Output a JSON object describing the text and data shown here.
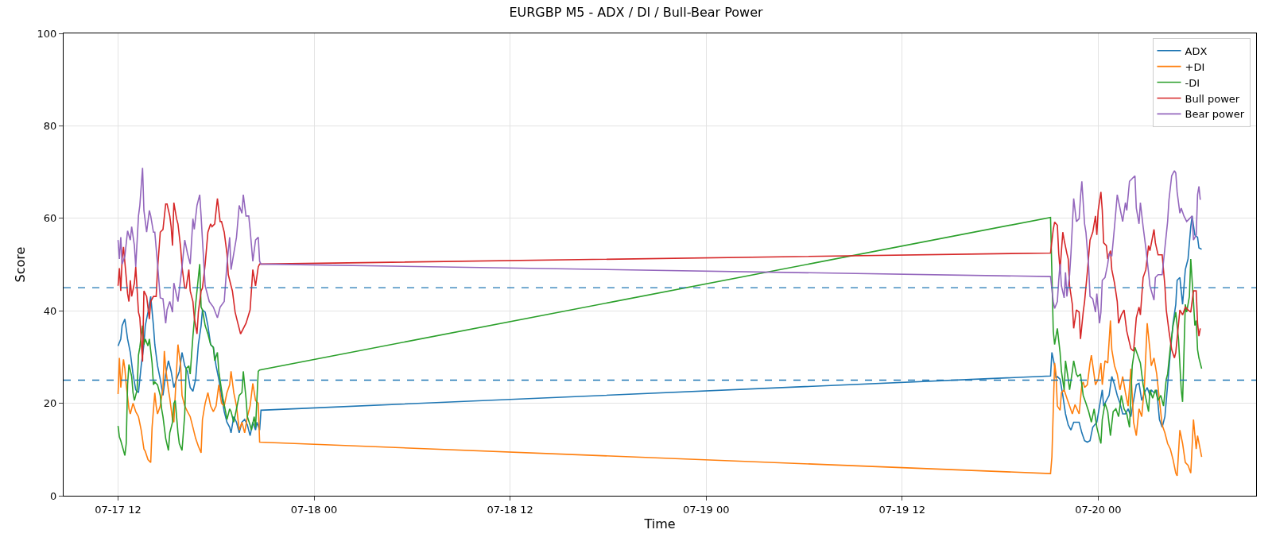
{
  "chart_data": {
    "type": "line",
    "title": "EURGBP M5 - ADX / DI / Bull-Bear Power",
    "xlabel": "Time",
    "ylabel": "Score",
    "xlim": [
      "--07-17T08:40",
      "--07-20T09:40"
    ],
    "ylim": [
      0,
      100
    ],
    "xticks": [
      {
        "value": "--07-17T12:00",
        "label": "07-17 12"
      },
      {
        "value": "--07-18T00:00",
        "label": "07-18 00"
      },
      {
        "value": "--07-18T12:00",
        "label": "07-18 12"
      },
      {
        "value": "--07-19T00:00",
        "label": "07-19 00"
      },
      {
        "value": "--07-19T12:00",
        "label": "07-19 12"
      },
      {
        "value": "--07-20T00:00",
        "label": "07-20 00"
      }
    ],
    "yticks": [
      0,
      20,
      40,
      60,
      80,
      100
    ],
    "grid": true,
    "legend": "top right",
    "ref_lines": [
      {
        "axis": "y",
        "value": 45,
        "color": "#1f77b4",
        "line_style": "dashed"
      },
      {
        "axis": "y",
        "value": 25,
        "color": "#1f77b4",
        "line_style": "dashed"
      }
    ],
    "series": [
      {
        "name": "ADX",
        "color": "#1f77b4",
        "x": [
          "--07-17T12:00",
          "--07-17T12:10",
          "--07-17T12:15",
          "--07-17T12:25",
          "--07-17T12:35",
          "--07-17T12:45",
          "--07-17T12:55",
          "--07-17T13:05",
          "--07-17T13:15",
          "--07-17T13:25",
          "--07-17T13:35",
          "--07-17T13:40",
          "--07-17T13:50",
          "--07-17T14:00",
          "--07-17T14:10",
          "--07-17T14:15",
          "--07-17T14:25",
          "--07-17T14:35",
          "--07-17T14:45",
          "--07-17T14:55",
          "--07-17T15:05",
          "--07-17T15:15",
          "--07-17T15:25",
          "--07-17T15:35",
          "--07-17T15:45",
          "--07-17T15:55",
          "--07-17T16:05",
          "--07-17T16:15",
          "--07-17T16:25",
          "--07-17T16:35",
          "--07-17T16:45",
          "--07-17T16:55",
          "--07-17T17:05",
          "--07-17T17:10",
          "--07-17T17:20",
          "--07-17T17:30",
          "--07-17T17:40",
          "--07-17T17:50",
          "--07-17T18:00",
          "--07-17T18:10",
          "--07-17T18:20",
          "--07-17T18:30",
          "--07-17T18:40",
          "--07-17T18:50",
          "--07-17T18:55",
          "--07-17T19:05",
          "--07-17T19:15",
          "--07-17T19:25",
          "--07-17T19:35",
          "--07-17T19:45",
          "--07-17T19:55",
          "--07-17T20:05",
          "--07-17T20:15",
          "--07-17T20:25",
          "--07-17T20:30",
          "--07-17T20:40",
          "--07-17T20:45",
          "--07-19T21:05",
          "--07-19T21:10",
          "--07-19T21:20",
          "--07-19T21:25",
          "--07-19T21:30",
          "--07-19T21:40",
          "--07-19T21:50",
          "--07-19T22:00",
          "--07-19T22:10",
          "--07-19T22:20",
          "--07-19T22:30",
          "--07-19T22:40",
          "--07-19T22:50",
          "--07-19T23:00",
          "--07-19T23:10",
          "--07-19T23:20",
          "--07-19T23:30",
          "--07-19T23:40",
          "--07-19T23:55",
          "--07-20T00:05",
          "--07-20T00:15",
          "--07-20T00:20",
          "--07-20T00:30",
          "--07-20T00:40",
          "--07-20T00:50",
          "--07-20T01:00",
          "--07-20T01:10",
          "--07-20T01:20",
          "--07-20T01:30",
          "--07-20T01:40",
          "--07-20T01:50",
          "--07-20T02:00",
          "--07-20T02:10",
          "--07-20T02:20",
          "--07-20T02:30",
          "--07-20T02:40",
          "--07-20T02:50",
          "--07-20T03:00",
          "--07-20T03:10",
          "--07-20T03:15",
          "--07-20T03:25",
          "--07-20T03:35",
          "--07-20T03:45",
          "--07-20T03:55",
          "--07-20T04:05",
          "--07-20T04:15",
          "--07-20T04:25",
          "--07-20T04:35",
          "--07-20T04:45",
          "--07-20T04:50",
          "--07-20T05:00",
          "--07-20T05:10",
          "--07-20T05:20",
          "--07-20T05:30",
          "--07-20T05:40",
          "--07-20T05:45",
          "--07-20T05:55",
          "--07-20T06:05",
          "--07-20T06:10",
          "--07-20T06:20"
        ],
        "values": [
          32.4,
          33.9,
          36.8,
          38.2,
          33.9,
          31.0,
          26.3,
          22.9,
          22.3,
          28.1,
          32.7,
          36.8,
          39.7,
          43.1,
          36.8,
          32.7,
          28.1,
          25.2,
          21.7,
          26.3,
          29.2,
          26.9,
          23.4,
          25.2,
          26.9,
          31.0,
          28.1,
          26.9,
          23.4,
          22.6,
          25.2,
          32.7,
          36.8,
          40.2,
          39.7,
          36.8,
          32.7,
          32.1,
          28.1,
          25.2,
          21.7,
          18.2,
          15.9,
          14.8,
          13.6,
          17.1,
          15.9,
          13.6,
          15.9,
          16.5,
          15.3,
          13.0,
          15.9,
          14.2,
          15.9,
          14.2,
          18.5,
          25.9,
          31.0,
          28.1,
          25.5,
          25.8,
          25.2,
          21.7,
          17.7,
          15.3,
          14.2,
          15.9,
          15.9,
          15.9,
          13.6,
          11.9,
          11.6,
          11.9,
          14.8,
          15.9,
          19.4,
          22.9,
          19.4,
          20.6,
          21.7,
          25.8,
          24.0,
          21.7,
          20.0,
          17.7,
          17.7,
          18.8,
          17.1,
          20.6,
          24.0,
          24.3,
          20.6,
          22.3,
          23.4,
          21.7,
          22.9,
          22.3,
          22.9,
          16.5,
          14.8,
          17.1,
          24.0,
          31.0,
          37.3,
          41.4,
          46.6,
          47.2,
          41.4,
          48.9,
          51.2,
          58.2,
          60.5,
          56.4,
          55.9,
          53.6,
          53.3
        ]
      },
      {
        "name": "+DI",
        "color": "#ff7f0e",
        "x": [
          "--07-17T12:00",
          "--07-17T12:05",
          "--07-17T12:10",
          "--07-17T12:20",
          "--07-17T12:25",
          "--07-17T12:30",
          "--07-17T12:40",
          "--07-17T12:45",
          "--07-17T12:55",
          "--07-17T13:05",
          "--07-17T13:15",
          "--07-17T13:25",
          "--07-17T13:35",
          "--07-17T13:40",
          "--07-17T13:50",
          "--07-17T14:00",
          "--07-17T14:05",
          "--07-17T14:15",
          "--07-17T14:20",
          "--07-17T14:25",
          "--07-17T14:35",
          "--07-17T14:45",
          "--07-17T14:50",
          "--07-17T14:55",
          "--07-17T15:05",
          "--07-17T15:10",
          "--07-17T15:20",
          "--07-17T15:25",
          "--07-17T15:30",
          "--07-17T15:40",
          "--07-17T15:50",
          "--07-17T15:55",
          "--07-17T16:05",
          "--07-17T16:15",
          "--07-17T16:25",
          "--07-17T16:35",
          "--07-17T16:45",
          "--07-17T16:55",
          "--07-17T17:05",
          "--07-17T17:10",
          "--07-17T17:20",
          "--07-17T17:30",
          "--07-17T17:40",
          "--07-17T17:50",
          "--07-17T18:00",
          "--07-17T18:10",
          "--07-17T18:20",
          "--07-17T18:30",
          "--07-17T18:40",
          "--07-17T18:50",
          "--07-17T18:55",
          "--07-17T19:05",
          "--07-17T19:15",
          "--07-17T19:25",
          "--07-17T19:35",
          "--07-17T19:45",
          "--07-17T19:55",
          "--07-17T20:05",
          "--07-17T20:15",
          "--07-17T20:25",
          "--07-17T20:35",
          "--07-17T20:40",
          "--07-19T21:05",
          "--07-19T21:10",
          "--07-19T21:20",
          "--07-19T21:25",
          "--07-19T21:30",
          "--07-19T21:40",
          "--07-19T21:45",
          "--07-19T21:55",
          "--07-19T22:05",
          "--07-19T22:15",
          "--07-19T22:25",
          "--07-19T22:35",
          "--07-19T22:50",
          "--07-19T23:00",
          "--07-19T23:05",
          "--07-19T23:10",
          "--07-19T23:20",
          "--07-19T23:30",
          "--07-19T23:35",
          "--07-19T23:50",
          "--07-20T00:00",
          "--07-20T00:10",
          "--07-20T00:15",
          "--07-20T00:25",
          "--07-20T00:35",
          "--07-20T00:45",
          "--07-20T00:50",
          "--07-20T01:00",
          "--07-20T01:10",
          "--07-20T01:20",
          "--07-20T01:30",
          "--07-20T01:40",
          "--07-20T01:50",
          "--07-20T02:00",
          "--07-20T02:10",
          "--07-20T02:20",
          "--07-20T02:30",
          "--07-20T02:40",
          "--07-20T02:50",
          "--07-20T03:00",
          "--07-20T03:10",
          "--07-20T03:15",
          "--07-20T03:25",
          "--07-20T03:35",
          "--07-20T03:45",
          "--07-20T03:55",
          "--07-20T04:05",
          "--07-20T04:15",
          "--07-20T04:25",
          "--07-20T04:35",
          "--07-20T04:45",
          "--07-20T04:50",
          "--07-20T05:00",
          "--07-20T05:10",
          "--07-20T05:20",
          "--07-20T05:30",
          "--07-20T05:40",
          "--07-20T05:50",
          "--07-20T06:00",
          "--07-20T06:05",
          "--07-20T06:20"
        ],
        "values": [
          22.0,
          29.8,
          23.4,
          29.5,
          27.5,
          24.0,
          18.8,
          17.7,
          20.0,
          18.2,
          17.1,
          14.2,
          10.1,
          9.6,
          7.8,
          7.2,
          14.8,
          22.3,
          19.4,
          17.7,
          19.4,
          23.4,
          31.3,
          27.5,
          22.9,
          21.1,
          16.5,
          15.9,
          21.7,
          32.7,
          28.1,
          21.7,
          19.4,
          18.2,
          17.1,
          14.8,
          12.4,
          10.7,
          9.3,
          16.5,
          20.0,
          22.3,
          19.4,
          18.2,
          19.4,
          24.0,
          20.0,
          19.4,
          22.3,
          24.0,
          26.9,
          22.3,
          19.4,
          14.2,
          15.9,
          13.6,
          17.1,
          19.4,
          24.3,
          20.6,
          20.0,
          11.6,
          4.8,
          8.4,
          28.7,
          26.3,
          19.4,
          18.5,
          22.3,
          22.9,
          21.1,
          19.4,
          17.7,
          19.7,
          17.7,
          24.0,
          24.6,
          23.4,
          24.0,
          28.7,
          30.4,
          24.0,
          25.2,
          28.7,
          24.0,
          29.2,
          28.7,
          37.9,
          31.6,
          28.1,
          26.3,
          22.9,
          25.8,
          22.3,
          19.4,
          27.5,
          15.9,
          13.0,
          18.8,
          17.1,
          24.0,
          37.3,
          31.6,
          28.1,
          29.8,
          26.3,
          20.6,
          15.3,
          13.6,
          11.3,
          10.1,
          7.8,
          4.9,
          4.3,
          14.2,
          11.3,
          7.2,
          6.6,
          4.9,
          16.5,
          10.1,
          13.0,
          8.4
        ]
      },
      {
        "name": "-DI",
        "color": "#2ca02c",
        "x": [
          "--07-17T12:00",
          "--07-17T12:05",
          "--07-17T12:10",
          "--07-17T12:20",
          "--07-17T12:25",
          "--07-17T12:30",
          "--07-17T12:35",
          "--07-17T12:40",
          "--07-17T12:50",
          "--07-17T12:55",
          "--07-17T13:00",
          "--07-17T13:10",
          "--07-17T13:15",
          "--07-17T13:20",
          "--07-17T13:30",
          "--07-17T13:35",
          "--07-17T13:40",
          "--07-17T13:50",
          "--07-17T13:55",
          "--07-17T14:05",
          "--07-17T14:10",
          "--07-17T14:15",
          "--07-17T14:25",
          "--07-17T14:35",
          "--07-17T14:40",
          "--07-17T14:45",
          "--07-17T14:55",
          "--07-17T15:05",
          "--07-17T15:10",
          "--07-17T15:20",
          "--07-17T15:25",
          "--07-17T15:30",
          "--07-17T15:40",
          "--07-17T15:45",
          "--07-17T15:55",
          "--07-17T16:05",
          "--07-17T16:10",
          "--07-17T16:20",
          "--07-17T16:25",
          "--07-17T16:35",
          "--07-17T16:40",
          "--07-17T16:45",
          "--07-17T17:00",
          "--07-17T17:05",
          "--07-17T17:10",
          "--07-17T17:20",
          "--07-17T17:30",
          "--07-17T17:40",
          "--07-17T17:50",
          "--07-17T17:55",
          "--07-17T18:05",
          "--07-17T18:10",
          "--07-17T18:20",
          "--07-17T18:25",
          "--07-17T18:35",
          "--07-17T18:40",
          "--07-17T18:50",
          "--07-17T18:55",
          "--07-17T19:05",
          "--07-17T19:15",
          "--07-17T19:25",
          "--07-17T19:35",
          "--07-17T19:40",
          "--07-17T19:50",
          "--07-17T19:55",
          "--07-17T20:05",
          "--07-17T20:10",
          "--07-17T20:20",
          "--07-17T20:25",
          "--07-17T20:35",
          "--07-17T20:40",
          "--07-19T21:05",
          "--07-19T21:15",
          "--07-19T21:20",
          "--07-19T21:25",
          "--07-19T21:30",
          "--07-19T21:40",
          "--07-19T21:45",
          "--07-19T21:55",
          "--07-19T22:00",
          "--07-19T22:10",
          "--07-19T22:15",
          "--07-19T22:25",
          "--07-19T22:30",
          "--07-19T22:40",
          "--07-19T22:45",
          "--07-19T22:55",
          "--07-19T23:05",
          "--07-19T23:15",
          "--07-19T23:25",
          "--07-19T23:35",
          "--07-19T23:45",
          "--07-19T23:55",
          "--07-20T00:05",
          "--07-20T00:10",
          "--07-20T00:15",
          "--07-20T00:25",
          "--07-20T00:35",
          "--07-20T00:45",
          "--07-20T00:55",
          "--07-20T01:05",
          "--07-20T01:15",
          "--07-20T01:25",
          "--07-20T01:35",
          "--07-20T01:45",
          "--07-20T01:55",
          "--07-20T02:05",
          "--07-20T02:15",
          "--07-20T02:25",
          "--07-20T02:35",
          "--07-20T02:45",
          "--07-20T02:55",
          "--07-20T03:05",
          "--07-20T03:10",
          "--07-20T03:20",
          "--07-20T03:30",
          "--07-20T03:40",
          "--07-20T03:50",
          "--07-20T04:00",
          "--07-20T04:10",
          "--07-20T04:15",
          "--07-20T04:25",
          "--07-20T04:35",
          "--07-20T04:45",
          "--07-20T04:55",
          "--07-20T05:05",
          "--07-20T05:10",
          "--07-20T05:20",
          "--07-20T05:25",
          "--07-20T05:35",
          "--07-20T05:40",
          "--07-20T05:50",
          "--07-20T05:55",
          "--07-20T06:00",
          "--07-20T06:05",
          "--07-20T06:10",
          "--07-20T06:20"
        ],
        "values": [
          15.1,
          12.7,
          11.9,
          9.8,
          8.7,
          11.3,
          24.0,
          28.4,
          25.8,
          22.3,
          20.6,
          22.9,
          30.4,
          32.1,
          36.8,
          32.7,
          33.9,
          32.4,
          33.9,
          28.7,
          24.0,
          24.6,
          24.0,
          21.7,
          18.8,
          17.1,
          12.4,
          9.8,
          13.6,
          15.9,
          20.0,
          20.6,
          13.6,
          11.3,
          9.8,
          17.7,
          27.5,
          28.1,
          26.3,
          34.5,
          37.9,
          41.4,
          50.1,
          40.8,
          40.2,
          36.8,
          35.0,
          32.7,
          32.1,
          29.2,
          31.0,
          26.9,
          22.9,
          21.1,
          18.2,
          16.5,
          18.8,
          18.2,
          15.9,
          18.8,
          21.7,
          22.3,
          26.9,
          21.1,
          17.1,
          15.3,
          14.2,
          17.1,
          14.8,
          26.9,
          27.2,
          60.2,
          35.6,
          32.7,
          34.5,
          36.2,
          31.0,
          26.9,
          22.9,
          29.2,
          25.2,
          22.9,
          26.9,
          29.2,
          26.3,
          25.8,
          26.3,
          21.7,
          20.0,
          18.2,
          15.9,
          18.8,
          14.8,
          12.4,
          11.3,
          16.5,
          20.0,
          18.2,
          13.0,
          18.2,
          18.8,
          17.1,
          21.7,
          18.8,
          17.7,
          14.8,
          28.1,
          32.1,
          30.4,
          28.7,
          24.0,
          21.1,
          18.2,
          22.9,
          21.1,
          22.9,
          20.6,
          21.7,
          19.4,
          25.2,
          26.3,
          32.1,
          36.8,
          39.7,
          33.9,
          22.9,
          20.3,
          41.4,
          39.7,
          43.1,
          51.2,
          42.0,
          36.8,
          37.9,
          31.6,
          29.8,
          27.5
        ]
      },
      {
        "name": "Bull power",
        "color": "#d62728",
        "x": [
          "--07-17T12:00",
          "--07-17T12:05",
          "--07-17T12:10",
          "--07-17T12:15",
          "--07-17T12:20",
          "--07-17T12:30",
          "--07-17T12:35",
          "--07-17T12:40",
          "--07-17T12:45",
          "--07-17T12:50",
          "--07-17T13:00",
          "--07-17T13:05",
          "--07-17T13:15",
          "--07-17T13:20",
          "--07-17T13:30",
          "--07-17T13:35",
          "--07-17T13:45",
          "--07-17T13:55",
          "--07-17T14:00",
          "--07-17T14:10",
          "--07-17T14:20",
          "--07-17T14:25",
          "--07-17T14:35",
          "--07-17T14:45",
          "--07-17T14:55",
          "--07-17T15:00",
          "--07-17T15:10",
          "--07-17T15:15",
          "--07-17T15:20",
          "--07-17T15:25",
          "--07-17T15:35",
          "--07-17T15:40",
          "--07-17T15:50",
          "--07-17T15:55",
          "--07-17T16:05",
          "--07-17T16:10",
          "--07-17T16:20",
          "--07-17T16:25",
          "--07-17T16:35",
          "--07-17T16:40",
          "--07-17T16:50",
          "--07-17T16:55",
          "--07-17T17:05",
          "--07-17T17:10",
          "--07-17T17:20",
          "--07-17T17:30",
          "--07-17T17:40",
          "--07-17T17:45",
          "--07-17T17:55",
          "--07-17T18:05",
          "--07-17T18:15",
          "--07-17T18:20",
          "--07-17T18:30",
          "--07-17T18:40",
          "--07-17T18:45",
          "--07-17T18:55",
          "--07-17T19:00",
          "--07-17T19:10",
          "--07-17T19:20",
          "--07-17T19:30",
          "--07-17T19:50",
          "--07-17T20:05",
          "--07-17T20:15",
          "--07-17T20:25",
          "--07-17T20:35",
          "--07-17T20:40",
          "--07-17T20:50",
          "--07-19T21:05",
          "--07-19T21:15",
          "--07-19T21:20",
          "--07-19T21:30",
          "--07-19T21:35",
          "--07-19T21:40",
          "--07-19T21:50",
          "--07-19T21:55",
          "--07-19T22:05",
          "--07-19T22:10",
          "--07-19T22:15",
          "--07-19T22:25",
          "--07-19T22:30",
          "--07-19T22:40",
          "--07-19T22:50",
          "--07-19T22:55",
          "--07-19T23:05",
          "--07-19T23:10",
          "--07-19T23:20",
          "--07-19T23:30",
          "--07-19T23:40",
          "--07-19T23:50",
          "--07-19T23:55",
          "--07-20T00:00",
          "--07-20T00:10",
          "--07-20T00:15",
          "--07-20T00:20",
          "--07-20T00:30",
          "--07-20T00:35",
          "--07-20T00:45",
          "--07-20T00:50",
          "--07-20T01:00",
          "--07-20T01:10",
          "--07-20T01:15",
          "--07-20T01:25",
          "--07-20T01:35",
          "--07-20T01:45",
          "--07-20T02:00",
          "--07-20T02:10",
          "--07-20T02:20",
          "--07-20T02:30",
          "--07-20T02:35",
          "--07-20T02:45",
          "--07-20T02:55",
          "--07-20T03:05",
          "--07-20T03:10",
          "--07-20T03:25",
          "--07-20T03:30",
          "--07-20T03:40",
          "--07-20T03:55",
          "--07-20T04:05",
          "--07-20T04:10",
          "--07-20T04:20",
          "--07-20T04:30",
          "--07-20T04:40",
          "--07-20T04:45",
          "--07-20T05:00",
          "--07-20T05:10",
          "--07-20T05:20",
          "--07-20T05:30",
          "--07-20T05:40",
          "--07-20T05:50",
          "--07-20T06:00",
          "--07-20T06:05",
          "--07-20T06:10",
          "--07-20T06:15"
        ],
        "values": [
          45.4,
          49.2,
          44.3,
          51.2,
          53.8,
          47.2,
          43.7,
          42.0,
          46.6,
          43.1,
          46.0,
          49.5,
          39.7,
          38.5,
          29.0,
          44.3,
          43.1,
          38.2,
          42.0,
          43.1,
          43.1,
          48.9,
          57.0,
          57.6,
          63.1,
          63.1,
          60.5,
          58.2,
          54.1,
          63.4,
          59.9,
          58.8,
          53.6,
          49.5,
          44.9,
          44.9,
          48.9,
          44.3,
          42.0,
          38.5,
          35.0,
          39.7,
          44.3,
          44.9,
          50.1,
          57.0,
          58.8,
          58.2,
          58.8,
          64.3,
          59.3,
          59.3,
          57.0,
          52.4,
          47.8,
          45.4,
          44.3,
          39.7,
          37.3,
          35.0,
          37.3,
          40.2,
          48.9,
          45.4,
          49.5,
          50.1,
          50.1,
          52.5,
          57.6,
          59.2,
          58.5,
          52.4,
          48.9,
          57.0,
          55.3,
          52.4,
          51.2,
          45.4,
          41.4,
          36.2,
          40.2,
          39.7,
          33.9,
          39.7,
          42.0,
          48.3,
          55.3,
          57.0,
          60.5,
          56.4,
          61.7,
          65.7,
          61.7,
          54.7,
          54.1,
          51.2,
          53.0,
          48.9,
          46.0,
          42.0,
          37.3,
          39.1,
          40.2,
          35.6,
          31.8,
          31.3,
          38.5,
          40.8,
          39.1,
          47.2,
          48.9,
          54.1,
          53.0,
          57.6,
          54.7,
          52.1,
          52.1,
          45.4,
          40.2,
          35.6,
          31.6,
          29.8,
          31.0,
          40.2,
          39.1,
          40.8,
          40.2,
          39.7,
          44.3,
          44.3,
          37.3,
          34.5,
          36.2
        ]
      },
      {
        "name": "Bear power",
        "color": "#9467bd",
        "x": [
          "--07-17T12:00",
          "--07-17T12:05",
          "--07-17T12:10",
          "--07-17T12:15",
          "--07-17T12:25",
          "--07-17T12:35",
          "--07-17T12:45",
          "--07-17T12:50",
          "--07-17T13:00",
          "--07-17T13:05",
          "--07-17T13:15",
          "--07-17T13:20",
          "--07-17T13:30",
          "--07-17T13:35",
          "--07-17T13:45",
          "--07-17T13:55",
          "--07-17T14:00",
          "--07-17T14:10",
          "--07-17T14:15",
          "--07-17T14:25",
          "--07-17T14:35",
          "--07-17T14:45",
          "--07-17T14:55",
          "--07-17T15:00",
          "--07-17T15:10",
          "--07-17T15:20",
          "--07-17T15:25",
          "--07-17T15:40",
          "--07-17T15:55",
          "--07-17T16:05",
          "--07-17T16:15",
          "--07-17T16:25",
          "--07-17T16:35",
          "--07-17T16:40",
          "--07-17T16:50",
          "--07-17T17:00",
          "--07-17T17:05",
          "--07-17T17:10",
          "--07-17T17:20",
          "--07-17T17:35",
          "--07-17T17:50",
          "--07-17T18:05",
          "--07-17T18:15",
          "--07-17T18:30",
          "--07-17T18:40",
          "--07-17T18:50",
          "--07-17T18:55",
          "--07-17T19:05",
          "--07-17T19:15",
          "--07-17T19:25",
          "--07-17T19:35",
          "--07-17T19:40",
          "--07-17T19:50",
          "--07-17T20:00",
          "--07-17T20:05",
          "--07-17T20:15",
          "--07-17T20:25",
          "--07-17T20:35",
          "--07-17T20:40",
          "--07-17T20:45",
          "--07-19T21:05",
          "--07-19T21:15",
          "--07-19T21:20",
          "--07-19T21:30",
          "--07-19T21:35",
          "--07-19T21:40",
          "--07-19T21:45",
          "--07-19T21:55",
          "--07-19T22:00",
          "--07-19T22:05",
          "--07-19T22:15",
          "--07-19T22:20",
          "--07-19T22:30",
          "--07-19T22:40",
          "--07-19T22:50",
          "--07-19T22:55",
          "--07-19T23:00",
          "--07-19T23:10",
          "--07-19T23:15",
          "--07-19T23:25",
          "--07-19T23:30",
          "--07-19T23:40",
          "--07-19T23:50",
          "--07-19T23:55",
          "--07-20T00:05",
          "--07-20T00:10",
          "--07-20T00:15",
          "--07-20T00:25",
          "--07-20T00:35",
          "--07-20T00:40",
          "--07-20T00:50",
          "--07-20T01:00",
          "--07-20T01:10",
          "--07-20T01:20",
          "--07-20T01:30",
          "--07-20T01:40",
          "--07-20T01:45",
          "--07-20T01:55",
          "--07-20T02:05",
          "--07-20T02:15",
          "--07-20T02:20",
          "--07-20T02:30",
          "--07-20T02:35",
          "--07-20T02:45",
          "--07-20T02:55",
          "--07-20T03:05",
          "--07-20T03:10",
          "--07-20T03:25",
          "--07-20T03:30",
          "--07-20T03:40",
          "--07-20T03:55",
          "--07-20T04:05",
          "--07-20T04:15",
          "--07-20T04:20",
          "--07-20T04:30",
          "--07-20T04:40",
          "--07-20T04:45",
          "--07-20T04:50",
          "--07-20T05:00",
          "--07-20T05:05",
          "--07-20T05:15",
          "--07-20T05:25",
          "--07-20T05:35",
          "--07-20T05:45",
          "--07-20T05:50",
          "--07-20T06:00",
          "--07-20T06:05",
          "--07-20T06:10",
          "--07-20T06:15"
        ],
        "values": [
          55.3,
          51.2,
          55.9,
          50.1,
          51.8,
          57.3,
          55.3,
          58.2,
          54.1,
          49.5,
          60.5,
          62.8,
          70.9,
          61.7,
          57.0,
          61.7,
          60.5,
          57.0,
          57.0,
          50.1,
          42.8,
          42.6,
          37.3,
          40.2,
          42.0,
          39.7,
          46.0,
          42.0,
          49.5,
          55.3,
          52.4,
          50.1,
          59.9,
          57.6,
          62.8,
          65.1,
          60.5,
          55.3,
          45.4,
          42.0,
          40.8,
          38.5,
          40.8,
          42.0,
          50.1,
          55.9,
          48.9,
          52.4,
          55.9,
          62.8,
          61.1,
          65.1,
          60.5,
          60.5,
          57.6,
          50.7,
          55.3,
          55.9,
          50.7,
          50.1,
          47.4,
          42.0,
          40.5,
          42.0,
          46.6,
          50.1,
          45.4,
          42.8,
          48.3,
          43.1,
          47.8,
          52.4,
          64.3,
          59.3,
          59.9,
          64.6,
          68.0,
          58.8,
          57.0,
          49.5,
          43.1,
          42.6,
          39.7,
          43.7,
          37.3,
          39.7,
          46.6,
          47.2,
          50.1,
          52.4,
          51.8,
          58.2,
          65.1,
          62.2,
          59.3,
          63.4,
          61.7,
          68.0,
          68.6,
          69.2,
          62.2,
          58.8,
          63.4,
          58.2,
          53.6,
          48.3,
          45.4,
          42.3,
          47.2,
          47.8,
          47.8,
          53.6,
          59.3,
          64.0,
          69.2,
          70.3,
          69.8,
          65.7,
          61.1,
          62.2,
          60.5,
          59.3,
          59.9,
          60.5,
          55.3,
          56.4,
          65.1,
          66.9,
          64.0
        ]
      }
    ]
  }
}
